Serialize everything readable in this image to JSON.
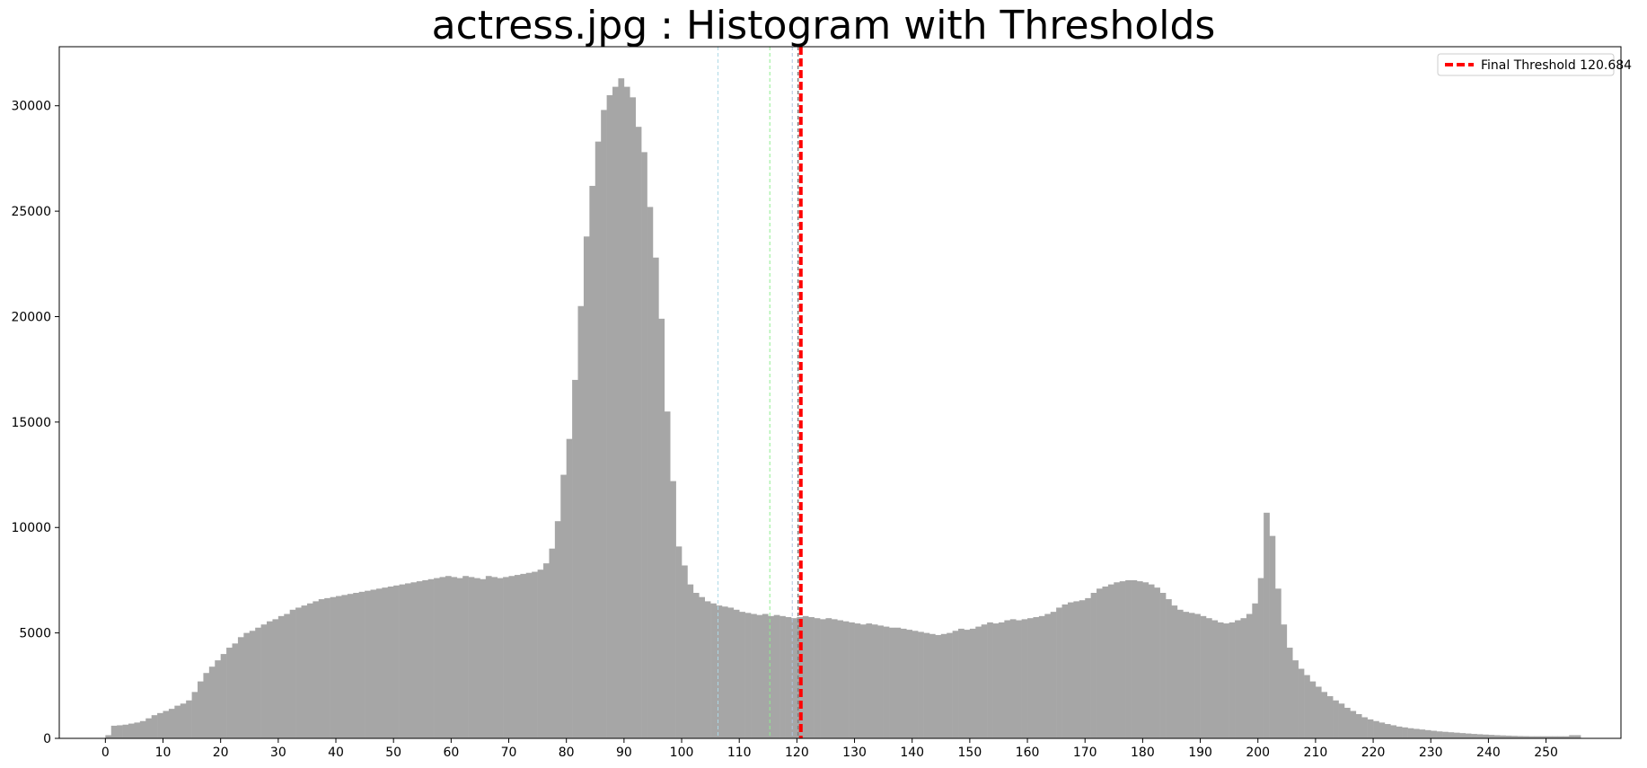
{
  "chart_data": {
    "type": "bar",
    "title": "actress.jpg : Histogram with Thresholds",
    "xlabel": "",
    "ylabel": "",
    "xlim": [
      -8,
      263
    ],
    "ylim": [
      0,
      32800
    ],
    "xticks": [
      0,
      10,
      20,
      30,
      40,
      50,
      60,
      70,
      80,
      90,
      100,
      110,
      120,
      130,
      140,
      150,
      160,
      170,
      180,
      190,
      200,
      210,
      220,
      230,
      240,
      250
    ],
    "yticks": [
      0,
      5000,
      10000,
      15000,
      20000,
      25000,
      30000
    ],
    "grid": false,
    "bar_color": "#a6a6a6",
    "bins_start": 0,
    "bin_width": 1,
    "values": [
      150,
      600,
      620,
      650,
      700,
      750,
      820,
      950,
      1100,
      1200,
      1300,
      1400,
      1550,
      1650,
      1800,
      2200,
      2700,
      3100,
      3400,
      3700,
      4000,
      4300,
      4500,
      4800,
      5000,
      5100,
      5250,
      5400,
      5550,
      5650,
      5800,
      5900,
      6100,
      6200,
      6300,
      6400,
      6500,
      6600,
      6650,
      6700,
      6750,
      6800,
      6850,
      6900,
      6950,
      7000,
      7050,
      7100,
      7150,
      7200,
      7250,
      7300,
      7350,
      7400,
      7450,
      7500,
      7550,
      7600,
      7650,
      7700,
      7650,
      7600,
      7700,
      7650,
      7600,
      7550,
      7700,
      7650,
      7600,
      7650,
      7700,
      7750,
      7800,
      7850,
      7900,
      8000,
      8300,
      9000,
      10300,
      12500,
      14200,
      17000,
      20500,
      23800,
      26200,
      28300,
      29800,
      30500,
      30900,
      31300,
      30900,
      30400,
      29000,
      27800,
      25200,
      22800,
      19900,
      15500,
      12200,
      9100,
      8200,
      7300,
      6900,
      6700,
      6500,
      6400,
      6300,
      6250,
      6200,
      6100,
      6000,
      5950,
      5900,
      5850,
      5900,
      5800,
      5850,
      5800,
      5750,
      5700,
      5750,
      5800,
      5750,
      5700,
      5650,
      5700,
      5650,
      5600,
      5550,
      5500,
      5450,
      5400,
      5450,
      5400,
      5350,
      5300,
      5250,
      5250,
      5200,
      5150,
      5100,
      5050,
      5000,
      4950,
      4900,
      4950,
      5000,
      5100,
      5200,
      5150,
      5200,
      5300,
      5400,
      5500,
      5450,
      5500,
      5600,
      5650,
      5600,
      5650,
      5700,
      5750,
      5800,
      5900,
      6000,
      6200,
      6350,
      6450,
      6500,
      6550,
      6650,
      6900,
      7100,
      7200,
      7300,
      7400,
      7450,
      7500,
      7500,
      7450,
      7400,
      7300,
      7150,
      6900,
      6600,
      6300,
      6100,
      6000,
      5950,
      5900,
      5800,
      5700,
      5600,
      5500,
      5450,
      5500,
      5600,
      5700,
      5900,
      6400,
      7600,
      10700,
      9600,
      7100,
      5400,
      4300,
      3700,
      3300,
      3000,
      2700,
      2450,
      2200,
      2000,
      1800,
      1650,
      1450,
      1300,
      1150,
      1000,
      900,
      820,
      750,
      680,
      620,
      560,
      520,
      480,
      450,
      420,
      390,
      360,
      330,
      310,
      290,
      270,
      250,
      230,
      210,
      195,
      180,
      165,
      150,
      140,
      130,
      120,
      110,
      105,
      100,
      100,
      100,
      100,
      100,
      100,
      100,
      150,
      150
    ],
    "vlines": [
      {
        "x": 106.3,
        "color": "#add8e6",
        "style": "dashed",
        "width": 1
      },
      {
        "x": 115.3,
        "color": "#90ee90",
        "style": "dashed",
        "width": 1
      },
      {
        "x": 119.2,
        "color": "#b0c4de",
        "style": "dashed",
        "width": 1
      },
      {
        "x": 120.2,
        "color": "#808080",
        "style": "dashed",
        "width": 1.5
      },
      {
        "x": 120.684,
        "color": "#ff0000",
        "style": "dashed",
        "width": 4
      }
    ],
    "legend": {
      "placement": "top-right",
      "entries": [
        {
          "label": "Final Threshold 120.684",
          "color": "#ff0000",
          "style": "dashed"
        }
      ]
    }
  }
}
